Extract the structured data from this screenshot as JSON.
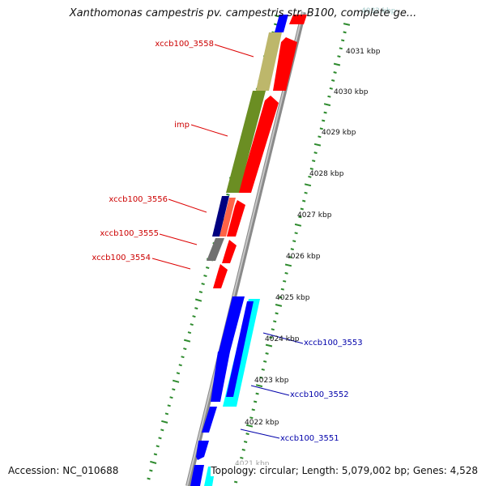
{
  "title": "Xanthomonas campestris pv. campestris str. B100, complete ge...",
  "accession": "Accession: NC_010688",
  "summary": "Topology: circular; Length: 5,079,002 bp; Genes: 4,528",
  "colors": {
    "backbone": "#999999",
    "tick": "#2e8b2e",
    "forward": "#ff0000",
    "reverse": "#0000ff",
    "label_red": "#cc0000",
    "label_blue": "#0000aa"
  },
  "ruler_labels": [
    {
      "text": "4032 kbp"
    },
    {
      "text": "4031 kbp"
    },
    {
      "text": "4030 kbp"
    },
    {
      "text": "4029 kbp"
    },
    {
      "text": "4028 kbp"
    },
    {
      "text": "4027 kbp"
    },
    {
      "text": "4026 kbp"
    },
    {
      "text": "4025 kbp"
    },
    {
      "text": "4024 kbp"
    },
    {
      "text": "4023 kbp"
    },
    {
      "text": "4022 kbp"
    },
    {
      "text": "4021 kbp"
    }
  ],
  "gene_labels": [
    {
      "text": "xccb100_3558",
      "color": "red"
    },
    {
      "text": "imp",
      "color": "red"
    },
    {
      "text": "xccb100_3556",
      "color": "red"
    },
    {
      "text": "xccb100_3555",
      "color": "red"
    },
    {
      "text": "xccb100_3554",
      "color": "red"
    },
    {
      "text": "xccb100_3553",
      "color": "blue"
    },
    {
      "text": "xccb100_3552",
      "color": "blue"
    },
    {
      "text": "xccb100_3551",
      "color": "blue"
    }
  ]
}
